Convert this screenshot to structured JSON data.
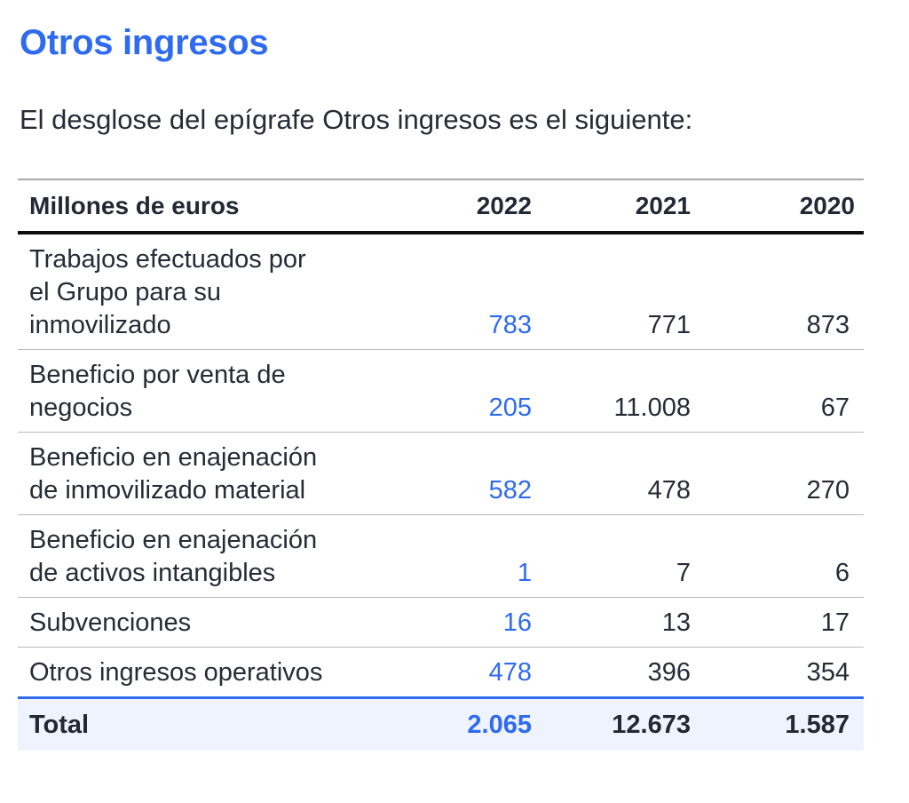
{
  "header": {
    "title": "Otros ingresos",
    "intro": "El desglose del epígrafe Otros ingresos es el siguiente:"
  },
  "table": {
    "columns": {
      "label": "Millones de euros",
      "y2022": "2022",
      "y2021": "2021",
      "y2020": "2020"
    },
    "rows": [
      {
        "label_lines": [
          "Trabajos efectuados por",
          "el Grupo para su",
          "inmovilizado"
        ],
        "y2022": "783",
        "y2021": "771",
        "y2020": "873"
      },
      {
        "label_lines": [
          "Beneficio por venta de",
          "negocios"
        ],
        "y2022": "205",
        "y2021": "11.008",
        "y2020": "67"
      },
      {
        "label_lines": [
          "Beneficio en enajenación",
          "de inmovilizado material"
        ],
        "y2022": "582",
        "y2021": "478",
        "y2020": "270"
      },
      {
        "label_lines": [
          "Beneficio en enajenación",
          "de activos intangibles"
        ],
        "y2022": "1",
        "y2021": "7",
        "y2020": "6"
      },
      {
        "label_lines": [
          "Subvenciones"
        ],
        "y2022": "16",
        "y2021": "13",
        "y2020": "17"
      },
      {
        "label_lines": [
          "Otros ingresos operativos"
        ],
        "y2022": "478",
        "y2021": "396",
        "y2020": "354"
      }
    ],
    "total": {
      "label": "Total",
      "y2022": "2.065",
      "y2021": "12.673",
      "y2020": "1.587"
    }
  },
  "colors": {
    "accent": "#2f6bf0",
    "text": "#262b36",
    "total_background": "#eef3fd"
  }
}
